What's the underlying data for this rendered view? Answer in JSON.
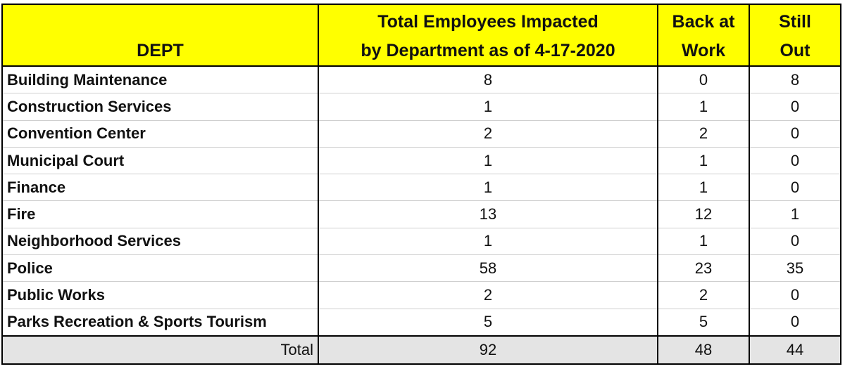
{
  "table": {
    "headers": [
      [
        "DEPT"
      ],
      [
        "Total Employees Impacted",
        "by Department as of 4-17-2020"
      ],
      [
        "Back at",
        "Work"
      ],
      [
        "Still",
        "Out"
      ]
    ],
    "rows": [
      [
        "Building Maintenance",
        8,
        0,
        8
      ],
      [
        "Construction Services",
        1,
        1,
        0
      ],
      [
        "Convention Center",
        2,
        2,
        0
      ],
      [
        "Municipal Court",
        1,
        1,
        0
      ],
      [
        "Finance",
        1,
        1,
        0
      ],
      [
        "Fire",
        13,
        12,
        1
      ],
      [
        "Neighborhood Services",
        1,
        1,
        0
      ],
      [
        "Police",
        58,
        23,
        35
      ],
      [
        "Public Works",
        2,
        2,
        0
      ],
      [
        "Parks Recreation & Sports Tourism",
        5,
        5,
        0
      ]
    ],
    "total_row": [
      "Total",
      92,
      48,
      44
    ]
  }
}
